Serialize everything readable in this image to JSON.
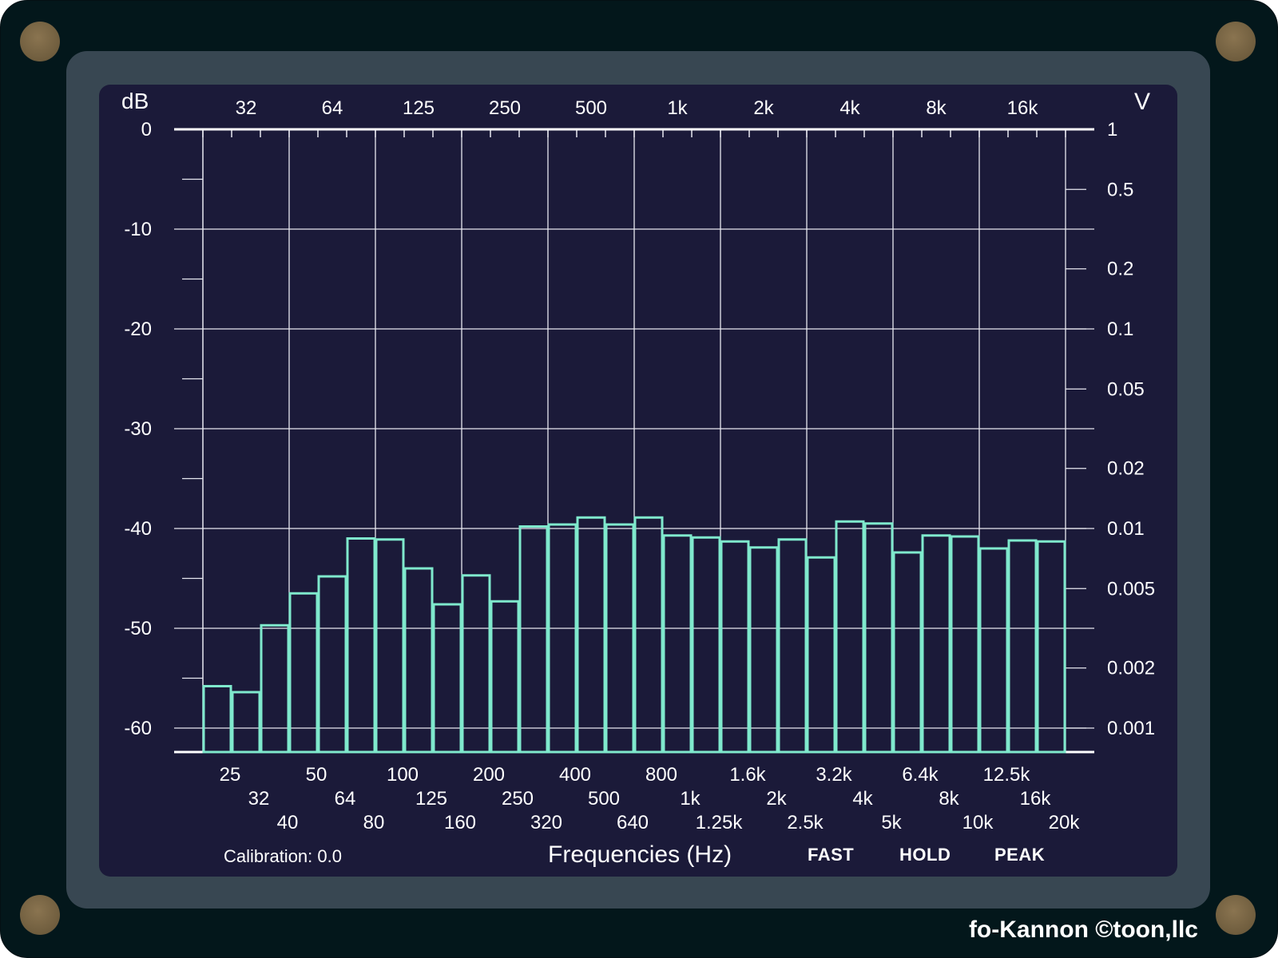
{
  "app": {
    "unit_left": "dB",
    "unit_right": "V",
    "xlabel": "Frequencies (Hz)",
    "calibration": "Calibration: 0.0",
    "modes": [
      "FAST",
      "HOLD",
      "PEAK"
    ],
    "credit": "fo-Kannon  ©toon,llc"
  },
  "chart_data": {
    "type": "bar",
    "ylabel": "dB",
    "y2label": "V",
    "ylim": [
      -62.5,
      0
    ],
    "y_ticks": [
      0,
      -10,
      -20,
      -30,
      -40,
      -50,
      -60
    ],
    "y_tick_labels": [
      "0",
      "-10",
      "-20",
      "-30",
      "-40",
      "-50",
      "-60"
    ],
    "y2_ticks": [
      1,
      0.5,
      0.2,
      0.1,
      0.05,
      0.02,
      0.01,
      0.005,
      0.002,
      0.001
    ],
    "y2_tick_labels": [
      "1",
      "0.5",
      "0.2",
      "0.1",
      "0.05",
      "0.02",
      "0.01",
      "0.005",
      "0.002",
      "0.001"
    ],
    "top_tick_labels": [
      "32",
      "64",
      "125",
      "250",
      "500",
      "1k",
      "2k",
      "4k",
      "8k",
      "16k"
    ],
    "categories": [
      "25",
      "32",
      "40",
      "50",
      "64",
      "80",
      "100",
      "125",
      "160",
      "200",
      "250",
      "320",
      "400",
      "500",
      "640",
      "800",
      "1k",
      "1.25k",
      "1.6k",
      "2k",
      "2.5k",
      "3.2k",
      "4k",
      "5k",
      "6.4k",
      "8k",
      "10k",
      "12.5k",
      "16k",
      "20k"
    ],
    "category_labels": [
      "25",
      "32",
      "40",
      "50",
      "64",
      "80",
      "100",
      "125",
      "160",
      "200",
      "250",
      "320",
      "400",
      "500",
      "640",
      "800",
      "1k",
      "1.25k",
      "1.6k",
      "2k",
      "2.5k",
      "3.2k",
      "4k",
      "5k",
      "6.4k",
      "8k",
      "10k",
      "12.5k",
      "16k",
      "20k"
    ],
    "values": [
      -55.8,
      -56.4,
      -49.7,
      -46.5,
      -44.8,
      -41.0,
      -41.1,
      -44.0,
      -47.6,
      -44.7,
      -47.3,
      -39.8,
      -39.6,
      -38.9,
      -39.6,
      -38.9,
      -40.7,
      -40.9,
      -41.3,
      -41.9,
      -41.1,
      -42.9,
      -39.3,
      -39.5,
      -42.4,
      -40.7,
      -40.8,
      -42.0,
      -41.2,
      -41.3
    ],
    "grid": true,
    "bar_color": "#7fe9cd"
  }
}
